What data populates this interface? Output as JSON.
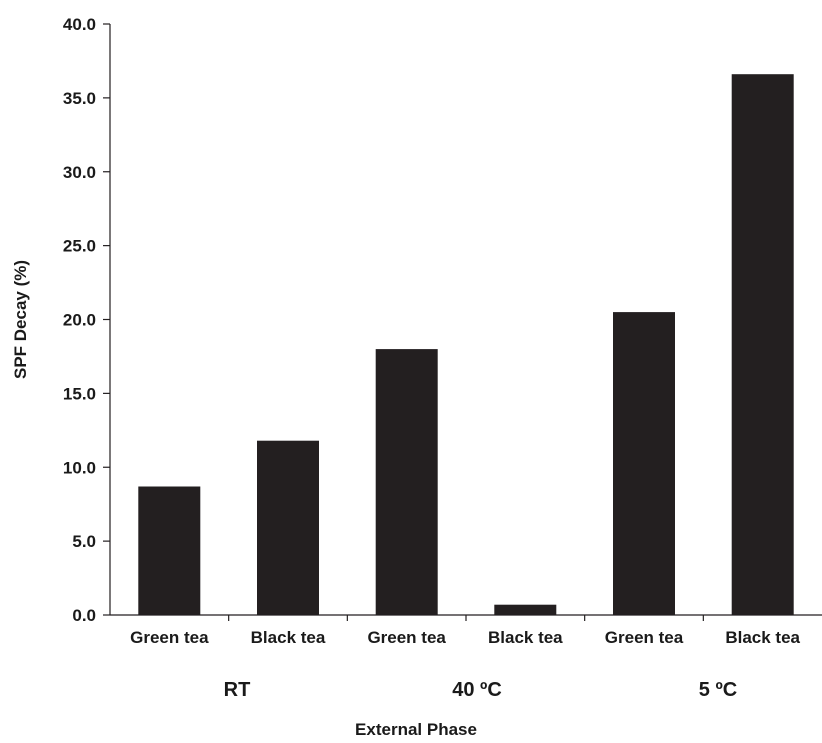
{
  "chart_data": {
    "type": "bar",
    "categories": [
      "Green tea",
      "Black tea",
      "Green tea",
      "Black tea",
      "Green tea",
      "Black tea"
    ],
    "groups": [
      {
        "label": "RT",
        "categories": [
          0,
          1
        ]
      },
      {
        "label": "40 ºC",
        "categories": [
          2,
          3
        ]
      },
      {
        "label": "5 ºC",
        "categories": [
          4,
          5
        ]
      }
    ],
    "values": [
      8.7,
      11.8,
      18.0,
      0.7,
      20.5,
      36.6
    ],
    "xlabel": "External Phase",
    "ylabel": "SPF Decay (%)",
    "ylim": [
      0,
      40
    ],
    "yticks": [
      "0.0",
      "5.0",
      "10.0",
      "15.0",
      "20.0",
      "25.0",
      "30.0",
      "35.0",
      "40.0"
    ],
    "bar_color": "#231f20",
    "grid": false
  }
}
